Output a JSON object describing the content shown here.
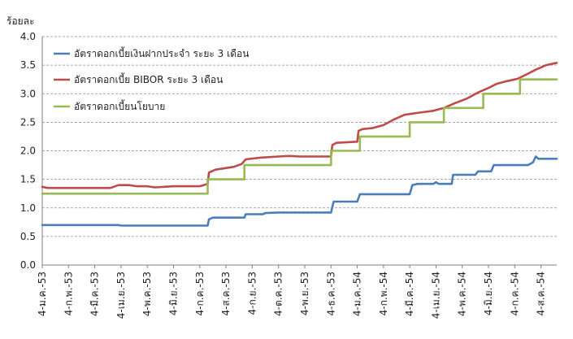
{
  "chart_data": {
    "type": "line",
    "ylabel": "ร้อยละ",
    "ylim": [
      0,
      4
    ],
    "yticks": [
      "0.0",
      "0.5",
      "1.0",
      "1.5",
      "2.0",
      "2.5",
      "3.0",
      "3.5",
      "4.0"
    ],
    "grid": true,
    "legend_position": "top-left",
    "x_labels": [
      "4-ม.ค.-53",
      "4-ก.พ.-53",
      "4-มี.ค.-53",
      "4-เม.ย.-53",
      "4-พ.ค.-53",
      "4-มิ.ย.-53",
      "4-ก.ค.-53",
      "4-ส.ค.-53",
      "4-ก.ย.-53",
      "4-ต.ค.-53",
      "4-พ.ย.-53",
      "4-ธ.ค.-53",
      "4-ม.ค.-54",
      "4-ก.พ.-54",
      "4-มี.ค.-54",
      "4-เม.ย.-54",
      "4-พ.ค.-54",
      "4-มิ.ย.-54",
      "4-ก.ค.-54",
      "4-ส.ค.-54"
    ],
    "series": [
      {
        "name": "อัตราดอกเบี้ยเงินฝากประจำ ระยะ 3 เดือน",
        "color": "#4a7ebb",
        "points": [
          [
            0,
            0.7
          ],
          [
            2.9,
            0.7
          ],
          [
            3.0,
            0.69
          ],
          [
            6.3,
            0.69
          ],
          [
            6.35,
            0.8
          ],
          [
            6.5,
            0.83
          ],
          [
            7.7,
            0.83
          ],
          [
            7.75,
            0.89
          ],
          [
            8.4,
            0.89
          ],
          [
            8.5,
            0.91
          ],
          [
            9.0,
            0.92
          ],
          [
            11.0,
            0.92
          ],
          [
            11.1,
            1.11
          ],
          [
            12.0,
            1.11
          ],
          [
            12.1,
            1.24
          ],
          [
            14.0,
            1.24
          ],
          [
            14.1,
            1.4
          ],
          [
            14.3,
            1.42
          ],
          [
            14.9,
            1.42
          ],
          [
            15.0,
            1.45
          ],
          [
            15.1,
            1.42
          ],
          [
            15.6,
            1.42
          ],
          [
            15.65,
            1.58
          ],
          [
            16.5,
            1.58
          ],
          [
            16.6,
            1.64
          ],
          [
            17.1,
            1.64
          ],
          [
            17.2,
            1.75
          ],
          [
            18.5,
            1.75
          ],
          [
            18.7,
            1.8
          ],
          [
            18.8,
            1.9
          ],
          [
            18.9,
            1.86
          ],
          [
            19.6,
            1.86
          ]
        ]
      },
      {
        "name": "อัตราดอกเบี้ย BIBOR ระยะ 3 เดือน",
        "color": "#be4b48",
        "points": [
          [
            0,
            1.37
          ],
          [
            0.2,
            1.35
          ],
          [
            2.6,
            1.35
          ],
          [
            2.9,
            1.4
          ],
          [
            3.3,
            1.4
          ],
          [
            3.6,
            1.38
          ],
          [
            4.0,
            1.38
          ],
          [
            4.3,
            1.36
          ],
          [
            5.0,
            1.38
          ],
          [
            6.0,
            1.38
          ],
          [
            6.3,
            1.42
          ],
          [
            6.35,
            1.62
          ],
          [
            6.6,
            1.67
          ],
          [
            7.3,
            1.72
          ],
          [
            7.6,
            1.77
          ],
          [
            7.75,
            1.85
          ],
          [
            8.3,
            1.88
          ],
          [
            9.0,
            1.9
          ],
          [
            9.4,
            1.91
          ],
          [
            9.8,
            1.9
          ],
          [
            11.0,
            1.9
          ],
          [
            11.05,
            2.1
          ],
          [
            11.2,
            2.14
          ],
          [
            12.0,
            2.16
          ],
          [
            12.05,
            2.35
          ],
          [
            12.2,
            2.38
          ],
          [
            12.6,
            2.4
          ],
          [
            13.0,
            2.45
          ],
          [
            13.4,
            2.55
          ],
          [
            13.8,
            2.63
          ],
          [
            14.4,
            2.67
          ],
          [
            14.9,
            2.7
          ],
          [
            15.3,
            2.75
          ],
          [
            15.7,
            2.83
          ],
          [
            16.2,
            2.92
          ],
          [
            16.6,
            3.02
          ],
          [
            17.0,
            3.1
          ],
          [
            17.3,
            3.17
          ],
          [
            17.7,
            3.22
          ],
          [
            18.1,
            3.26
          ],
          [
            18.5,
            3.35
          ],
          [
            18.8,
            3.42
          ],
          [
            19.2,
            3.5
          ],
          [
            19.6,
            3.54
          ]
        ]
      },
      {
        "name": "อัตราดอกเบี้ยนโยบาย",
        "color": "#98b954",
        "points": [
          [
            0,
            1.25
          ],
          [
            6.3,
            1.25
          ],
          [
            6.3,
            1.5
          ],
          [
            7.7,
            1.5
          ],
          [
            7.7,
            1.75
          ],
          [
            11.0,
            1.75
          ],
          [
            11.0,
            2.0
          ],
          [
            12.1,
            2.0
          ],
          [
            12.1,
            2.25
          ],
          [
            14.0,
            2.25
          ],
          [
            14.0,
            2.5
          ],
          [
            15.3,
            2.5
          ],
          [
            15.3,
            2.75
          ],
          [
            16.8,
            2.75
          ],
          [
            16.8,
            3.0
          ],
          [
            18.2,
            3.0
          ],
          [
            18.2,
            3.25
          ],
          [
            19.6,
            3.25
          ]
        ]
      }
    ]
  }
}
